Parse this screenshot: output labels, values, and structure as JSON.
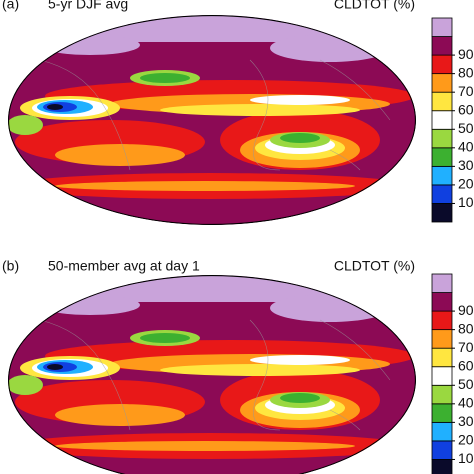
{
  "panels": [
    {
      "label": "(a)",
      "title": "5-yr DJF avg",
      "variable": "CLDTOT (%)"
    },
    {
      "label": "(b)",
      "title": "50-member avg at day 1",
      "variable": "CLDTOT (%)"
    }
  ],
  "colorbar": {
    "ticks": [
      10,
      20,
      30,
      40,
      50,
      60,
      70,
      80,
      90
    ],
    "colors": [
      "#0a0a2a",
      "#1040e0",
      "#20b0ff",
      "#3cb030",
      "#9ad840",
      "#ffffff",
      "#ffe640",
      "#ff9a1a",
      "#e81818",
      "#8c0a55",
      "#c9a3da"
    ]
  }
}
